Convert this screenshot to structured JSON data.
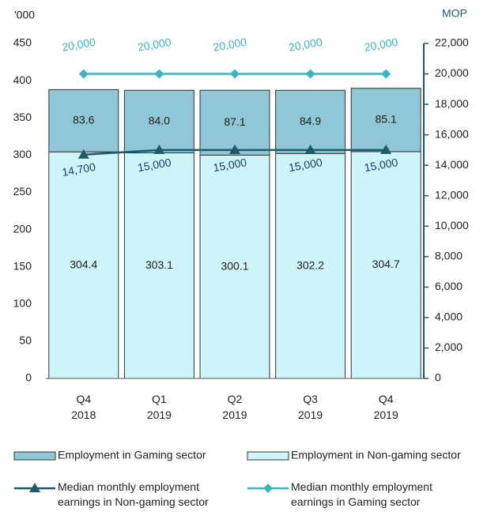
{
  "chart_data": {
    "type": "bar",
    "categories": [
      "Q4\n2018",
      "Q1\n2019",
      "Q2\n2019",
      "Q3\n2019",
      "Q4\n2019"
    ],
    "y_label": "'000",
    "y2_label": "MOP",
    "ylim": [
      0,
      450
    ],
    "yticks": [
      0,
      50,
      100,
      150,
      200,
      250,
      300,
      350,
      400,
      450
    ],
    "y2lim": [
      0,
      22000
    ],
    "y2ticks": [
      0,
      {
        "value": 2000,
        "label": "2,000"
      },
      {
        "value": 4000,
        "label": "4,000"
      },
      {
        "value": 6000,
        "label": "6,000"
      },
      {
        "value": 8000,
        "label": "8,000"
      },
      {
        "value": 10000,
        "label": "10,000"
      },
      {
        "value": 12000,
        "label": "12,000"
      },
      {
        "value": 14000,
        "label": "14,000"
      },
      {
        "value": 16000,
        "label": "16,000"
      },
      {
        "value": 18000,
        "label": "18,000"
      },
      {
        "value": 20000,
        "label": "20,000"
      },
      {
        "value": 22000,
        "label": "22,000"
      }
    ],
    "stacked": true,
    "series": [
      {
        "name": "Employment in Non-gaming sector",
        "type": "bar",
        "color": "#cdf4f8",
        "values": [
          304.4,
          303.1,
          300.1,
          302.2,
          304.7
        ],
        "value_labels": [
          "304.4",
          "303.1",
          "300.1",
          "302.2",
          "304.7"
        ]
      },
      {
        "name": "Employment in Gaming sector",
        "type": "bar",
        "color": "#8fc7d6",
        "values": [
          83.6,
          84.0,
          87.1,
          84.9,
          85.1
        ],
        "value_labels": [
          "83.6",
          "84.0",
          "87.1",
          "84.9",
          "85.1"
        ]
      },
      {
        "name": "Median monthly employment earnings in Non-gaming sector",
        "type": "line",
        "axis": "y2",
        "marker": "triangle",
        "color": "#1e5a6a",
        "values": [
          14700,
          15000,
          15000,
          15000,
          15000
        ],
        "value_labels": [
          "14,700",
          "15,000",
          "15,000",
          "15,000",
          "15,000"
        ]
      },
      {
        "name": "Median monthly employment earnings in Gaming sector",
        "type": "line",
        "axis": "y2",
        "marker": "diamond",
        "color": "#3bb4c4",
        "values": [
          20000,
          20000,
          20000,
          20000,
          20000
        ],
        "value_labels": [
          "20,000",
          "20,000",
          "20,000",
          "20,000",
          "20,000"
        ]
      }
    ],
    "legend_order": [
      1,
      0,
      2,
      3
    ]
  }
}
